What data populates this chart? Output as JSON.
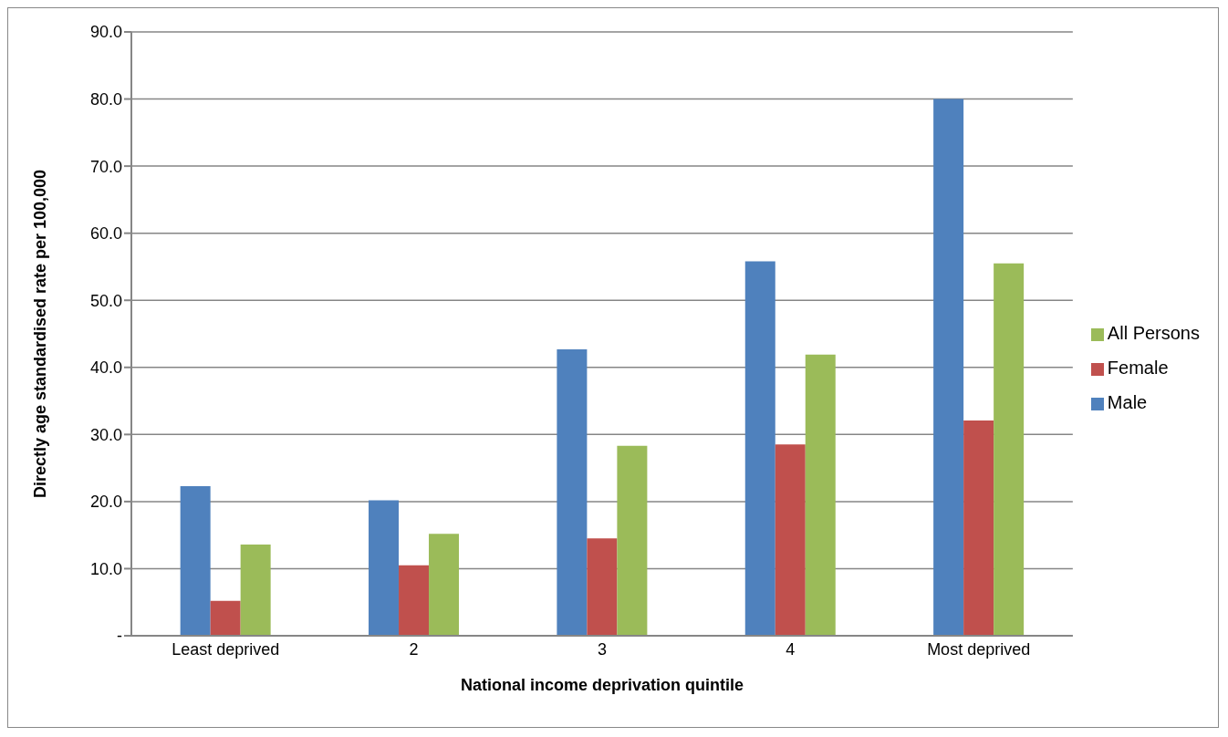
{
  "chart_data": {
    "type": "bar",
    "xlabel": "National income deprivation quintile",
    "ylabel": "Directly age standardised rate per 100,000",
    "categories": [
      "Least deprived",
      "2",
      "3",
      "4",
      "Most deprived"
    ],
    "series": [
      {
        "name": "Male",
        "color": "#4f81bd",
        "values": [
          22.3,
          20.2,
          42.7,
          55.8,
          80.0
        ]
      },
      {
        "name": "Female",
        "color": "#c0504d",
        "values": [
          5.2,
          10.5,
          14.5,
          28.5,
          32.1
        ]
      },
      {
        "name": "All Persons",
        "color": "#9bbb59",
        "values": [
          13.6,
          15.2,
          28.3,
          41.9,
          55.5
        ]
      }
    ],
    "ylim": [
      0,
      90
    ],
    "yticks": [
      {
        "value": 0,
        "label": "-"
      },
      {
        "value": 10,
        "label": "10.0"
      },
      {
        "value": 20,
        "label": "20.0"
      },
      {
        "value": 30,
        "label": "30.0"
      },
      {
        "value": 40,
        "label": "40.0"
      },
      {
        "value": 50,
        "label": "50.0"
      },
      {
        "value": 60,
        "label": "60.0"
      },
      {
        "value": 70,
        "label": "70.0"
      },
      {
        "value": 80,
        "label": "80.0"
      },
      {
        "value": 90,
        "label": "90.0"
      }
    ],
    "grid": "y",
    "legend": "right"
  }
}
